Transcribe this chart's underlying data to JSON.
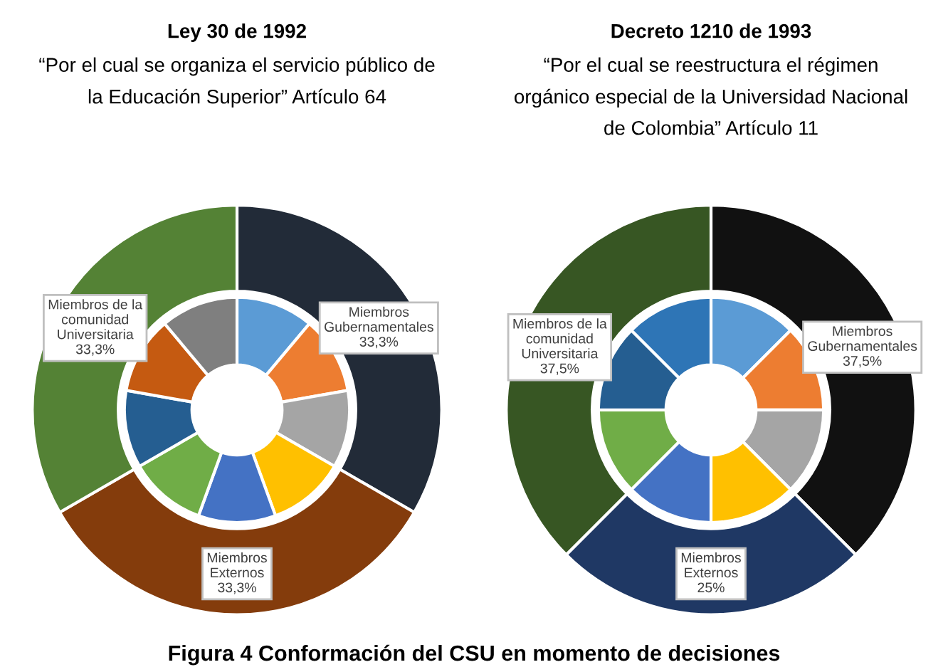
{
  "chart_data": [
    {
      "type": "donut",
      "title": "Ley 30 de 1992",
      "subtitle": "“Por el cual se organiza el servicio público de\nla Educación Superior” Artículo 64",
      "categories": [
        "Miembros Gubernamentales",
        "Miembros Externos",
        "Miembros de la comunidad Universitaria"
      ],
      "series": [
        {
          "values": [
            33.3,
            33.3,
            33.3
          ],
          "value_labels": [
            "33,3%",
            "33,3%",
            "33,3%"
          ],
          "colors": [
            "#222b38",
            "#843c0c",
            "#548235"
          ]
        },
        {
          "x": [
            null,
            null,
            null,
            null,
            null,
            null,
            null,
            null,
            null
          ],
          "values": [
            11.1,
            11.1,
            11.1,
            11.1,
            11.1,
            11.1,
            11.1,
            11.1,
            11.1
          ],
          "colors": [
            "#5b9bd5",
            "#ed7d31",
            "#a5a5a5",
            "#ffc000",
            "#4472c4",
            "#70ad47",
            "#255e91",
            "#c55a11",
            "#7f7f7f"
          ]
        }
      ],
      "annotations": [
        "Figura 4 Conformación del CSU en momento de decisiones"
      ]
    },
    {
      "type": "donut",
      "title": "Decreto 1210 de 1993",
      "subtitle": "“Por el cual se reestructura el régimen\norgánico especial de la Universidad Nacional\nde Colombia” Artículo 11",
      "categories": [
        "Miembros Gubernamentales",
        "Miembros Externos",
        "Miembros de la comunidad Universitaria"
      ],
      "series": [
        {
          "values": [
            37.5,
            25,
            37.5
          ],
          "value_labels": [
            "37,5%",
            "25%",
            "37,5%"
          ],
          "colors": [
            "#111111",
            "#1f3864",
            "#375623"
          ]
        },
        {
          "x": [
            null,
            null,
            null,
            null,
            null,
            null,
            null,
            null
          ],
          "values": [
            12.5,
            12.5,
            12.5,
            12.5,
            12.5,
            12.5,
            12.5,
            12.5
          ],
          "colors": [
            "#5b9bd5",
            "#ed7d31",
            "#a5a5a5",
            "#ffc000",
            "#4472c4",
            "#70ad47",
            "#255e91",
            "#2e75b6"
          ]
        }
      ]
    }
  ]
}
